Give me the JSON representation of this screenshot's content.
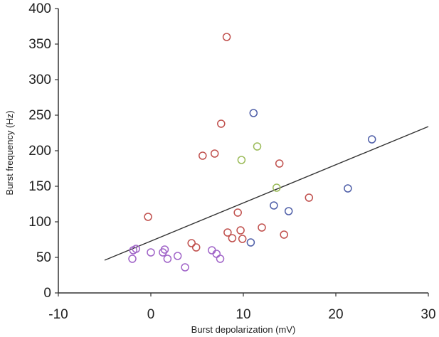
{
  "chart_data": {
    "type": "scatter",
    "title": "",
    "xlabel": "Burst depolarization (mV)",
    "ylabel": "Burst frequency (Hz)",
    "xlim": [
      -10,
      30
    ],
    "ylim": [
      0,
      400
    ],
    "x_ticks": [
      -10,
      0,
      10,
      20,
      30
    ],
    "y_ticks": [
      0,
      50,
      100,
      150,
      200,
      250,
      300,
      350,
      400
    ],
    "grid": false,
    "legend": "none",
    "series": [
      {
        "color": "#c0504d",
        "points": [
          {
            "x": 8.2,
            "y": 360
          },
          {
            "x": 7.6,
            "y": 238
          },
          {
            "x": 5.6,
            "y": 193
          },
          {
            "x": 6.9,
            "y": 196
          },
          {
            "x": 13.9,
            "y": 182
          },
          {
            "x": 17.1,
            "y": 134
          },
          {
            "x": -0.3,
            "y": 107
          },
          {
            "x": 9.4,
            "y": 113
          },
          {
            "x": 12.0,
            "y": 92
          },
          {
            "x": 8.3,
            "y": 85
          },
          {
            "x": 9.7,
            "y": 88
          },
          {
            "x": 14.4,
            "y": 82
          },
          {
            "x": 8.8,
            "y": 77
          },
          {
            "x": 9.9,
            "y": 76
          },
          {
            "x": 4.4,
            "y": 70
          },
          {
            "x": 4.9,
            "y": 64
          }
        ]
      },
      {
        "color": "#4f5fa8",
        "points": [
          {
            "x": 11.1,
            "y": 253
          },
          {
            "x": 23.9,
            "y": 216
          },
          {
            "x": 21.3,
            "y": 147
          },
          {
            "x": 13.3,
            "y": 123
          },
          {
            "x": 14.9,
            "y": 115
          },
          {
            "x": 10.8,
            "y": 71
          }
        ]
      },
      {
        "color": "#9bbb59",
        "points": [
          {
            "x": 11.5,
            "y": 206
          },
          {
            "x": 9.8,
            "y": 187
          },
          {
            "x": 13.6,
            "y": 148
          }
        ]
      },
      {
        "color": "#a064c8",
        "points": [
          {
            "x": -1.6,
            "y": 62
          },
          {
            "x": -1.9,
            "y": 60
          },
          {
            "x": 0.0,
            "y": 57
          },
          {
            "x": 1.5,
            "y": 61
          },
          {
            "x": 1.3,
            "y": 57
          },
          {
            "x": 6.6,
            "y": 60
          },
          {
            "x": 7.1,
            "y": 55
          },
          {
            "x": 2.9,
            "y": 52
          },
          {
            "x": -2.0,
            "y": 48
          },
          {
            "x": 1.8,
            "y": 48
          },
          {
            "x": 7.5,
            "y": 48
          },
          {
            "x": 3.7,
            "y": 36
          }
        ]
      }
    ],
    "trendline": {
      "color": "#333333",
      "points": [
        {
          "x": -5,
          "y": 46
        },
        {
          "x": 30,
          "y": 234
        }
      ]
    }
  }
}
